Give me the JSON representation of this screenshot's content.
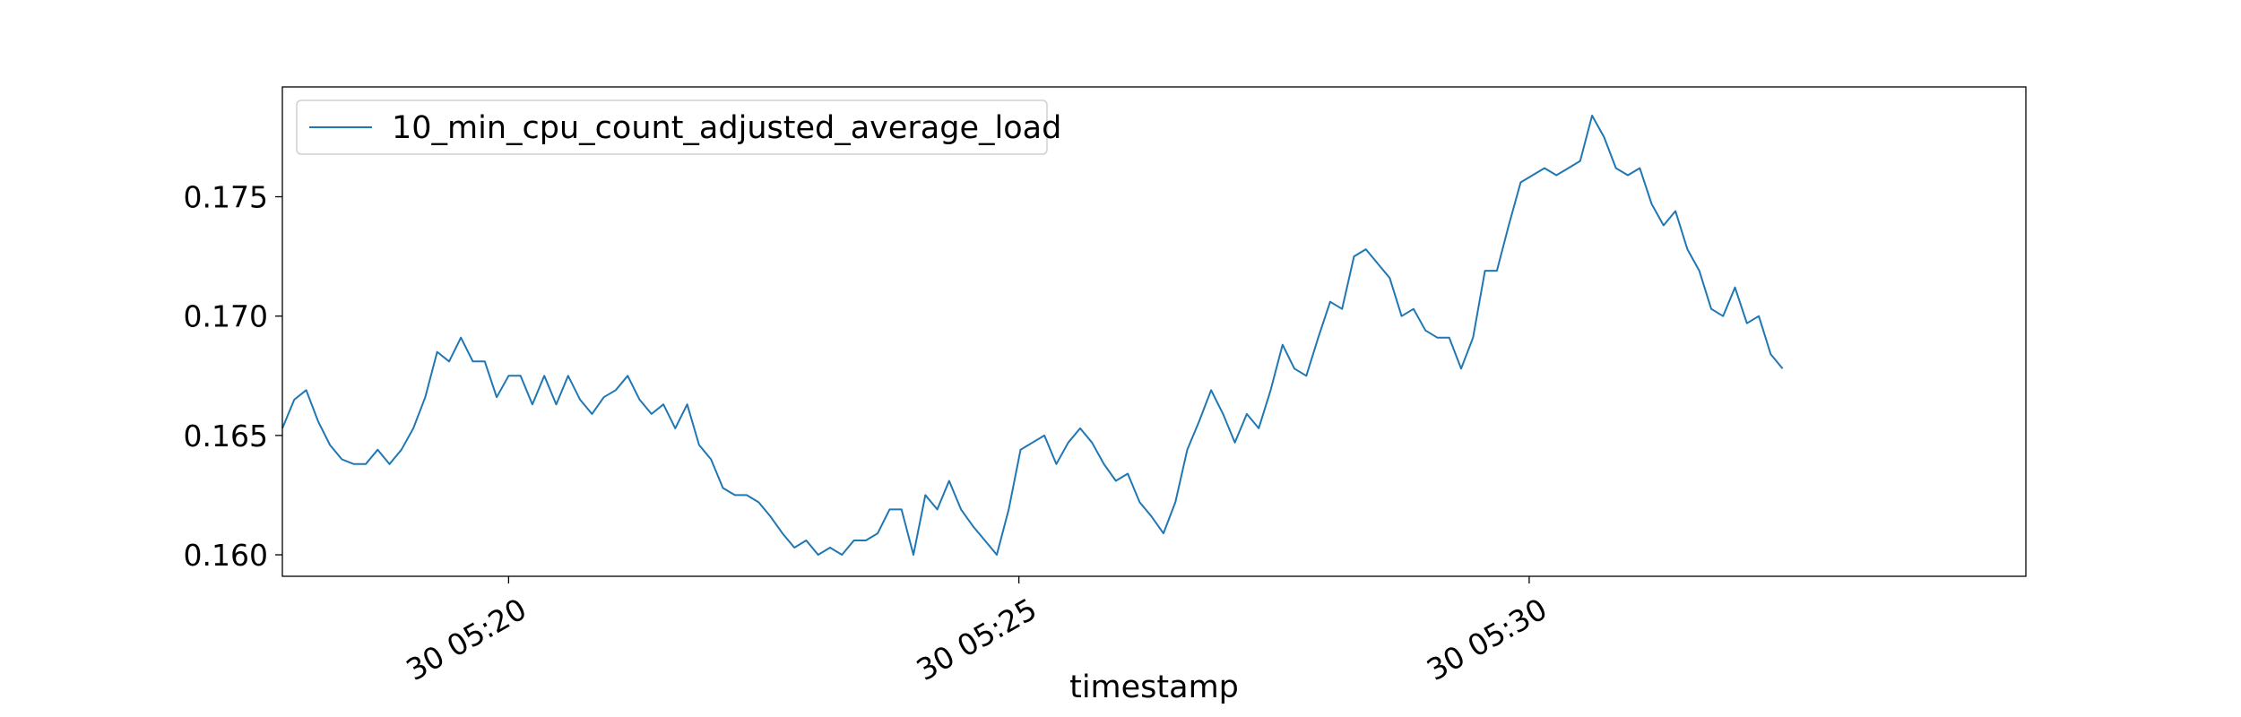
{
  "chart_data": {
    "type": "line",
    "xlabel": "timestamp",
    "ylabel": "",
    "title": "",
    "grid": false,
    "legend_placement": "upper-left",
    "line_color": "#1f77b4",
    "xlim": [
      "05:17:47",
      "05:34:52"
    ],
    "ylim": [
      0.1591,
      0.1796
    ],
    "x_ticks": [
      {
        "time": "05:20",
        "label": "30 05:20"
      },
      {
        "time": "05:25",
        "label": "30 05:25"
      },
      {
        "time": "05:30",
        "label": "30 05:30"
      }
    ],
    "y_ticks": [
      {
        "value": 0.16,
        "label": "0.160"
      },
      {
        "value": 0.165,
        "label": "0.165"
      },
      {
        "value": 0.17,
        "label": "0.170"
      },
      {
        "value": 0.175,
        "label": "0.175"
      }
    ],
    "series": [
      {
        "name": "10_min_cpu_count_adjusted_average_load",
        "x_start": "05:17:47",
        "x_step_seconds": 7,
        "values": [
          0.1653,
          0.1665,
          0.1669,
          0.1656,
          0.1646,
          0.164,
          0.1638,
          0.1638,
          0.1644,
          0.1638,
          0.1644,
          0.1653,
          0.1666,
          0.1685,
          0.1681,
          0.1691,
          0.1681,
          0.1681,
          0.1666,
          0.1675,
          0.1675,
          0.1663,
          0.1675,
          0.1663,
          0.1675,
          0.1665,
          0.1659,
          0.1666,
          0.1669,
          0.1675,
          0.1665,
          0.1659,
          0.1663,
          0.1653,
          0.1663,
          0.1646,
          0.164,
          0.1628,
          0.1625,
          0.1625,
          0.1622,
          0.1616,
          0.1609,
          0.1603,
          0.1606,
          0.16,
          0.1603,
          0.16,
          0.1606,
          0.1606,
          0.1609,
          0.1619,
          0.1619,
          0.16,
          0.1625,
          0.1619,
          0.1631,
          0.1619,
          0.1612,
          0.1606,
          0.16,
          0.1619,
          0.1644,
          0.1647,
          0.165,
          0.1638,
          0.1647,
          0.1653,
          0.1647,
          0.1638,
          0.1631,
          0.1634,
          0.1622,
          0.1616,
          0.1609,
          0.1622,
          0.1644,
          0.1656,
          0.1669,
          0.1659,
          0.1647,
          0.1659,
          0.1653,
          0.1669,
          0.1688,
          0.1678,
          0.1675,
          0.1691,
          0.1706,
          0.1703,
          0.1725,
          0.1728,
          0.1722,
          0.1716,
          0.17,
          0.1703,
          0.1694,
          0.1691,
          0.1691,
          0.1678,
          0.1691,
          0.1719,
          0.1719,
          0.1738,
          0.1756,
          0.1759,
          0.1762,
          0.1759,
          0.1762,
          0.1765,
          0.1784,
          0.1775,
          0.1762,
          0.1759,
          0.1762,
          0.1747,
          0.1738,
          0.1744,
          0.1728,
          0.1719,
          0.1703,
          0.17,
          0.1712,
          0.1697,
          0.17,
          0.1684,
          0.1678
        ]
      }
    ]
  }
}
